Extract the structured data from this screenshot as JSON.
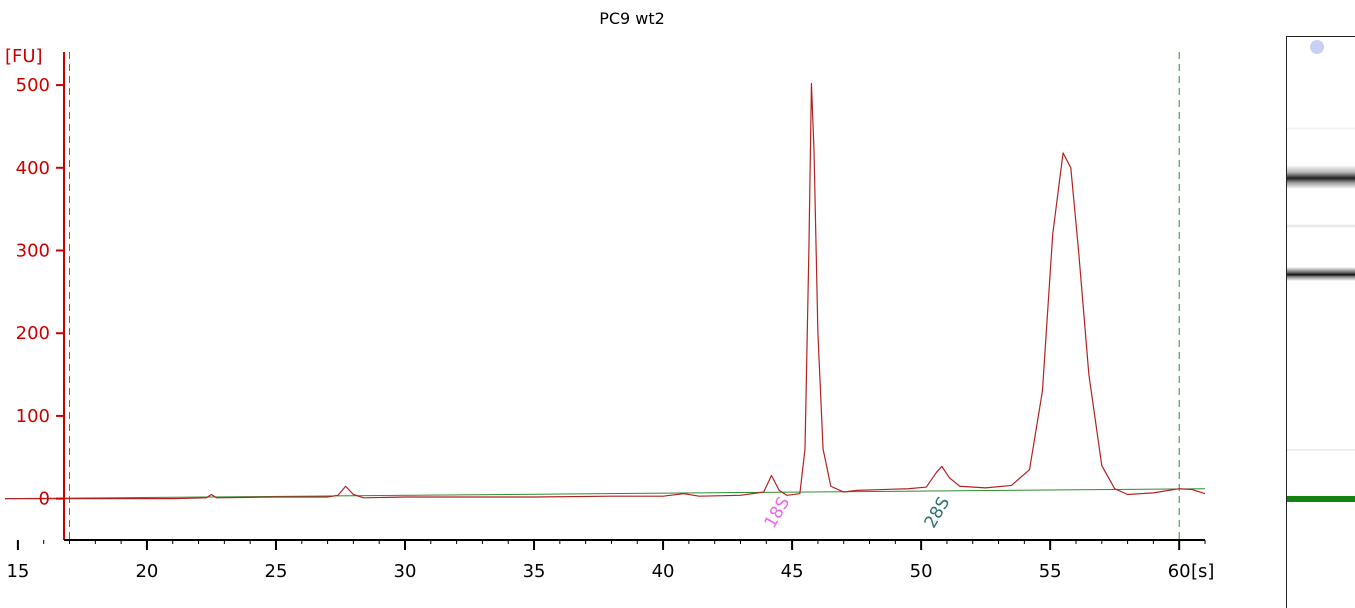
{
  "chart_data": {
    "type": "line",
    "title": "PC9 wt2",
    "yunit": "[FU]",
    "xunit": "[s]",
    "xlim": [
      14.5,
      61
    ],
    "ylim": [
      -50,
      540
    ],
    "xticks": [
      15,
      20,
      25,
      30,
      35,
      40,
      45,
      50,
      55,
      60
    ],
    "yticks": [
      0,
      100,
      200,
      300,
      400,
      500
    ],
    "markers": [
      17,
      60
    ],
    "colors": {
      "axis_y": "#cc0000",
      "trace": "#b22222",
      "baseline": "#2e8b2e",
      "marker": "#2e8b2e",
      "label_18S": "#ee66ee",
      "label_28S": "#2f6f6f"
    },
    "peak_labels": [
      {
        "text": "18S",
        "x": 44.6,
        "y": -20
      },
      {
        "text": "28S",
        "x": 50.8,
        "y": -20
      }
    ],
    "series": [
      {
        "values": [
          [
            14.5,
            0
          ],
          [
            18.5,
            0
          ],
          [
            21.0,
            0
          ],
          [
            22.3,
            1
          ],
          [
            22.5,
            5
          ],
          [
            22.7,
            1
          ],
          [
            25.0,
            2
          ],
          [
            27.0,
            2
          ],
          [
            27.4,
            4
          ],
          [
            27.7,
            15
          ],
          [
            28.0,
            5
          ],
          [
            28.4,
            1
          ],
          [
            30.0,
            2
          ],
          [
            35.0,
            2
          ],
          [
            38.0,
            3
          ],
          [
            40.0,
            3
          ],
          [
            40.8,
            6
          ],
          [
            41.4,
            3
          ],
          [
            43.0,
            4
          ],
          [
            43.9,
            8
          ],
          [
            44.2,
            28
          ],
          [
            44.5,
            10
          ],
          [
            44.8,
            4
          ],
          [
            45.3,
            6
          ],
          [
            45.5,
            60
          ],
          [
            45.65,
            300
          ],
          [
            45.75,
            502
          ],
          [
            45.85,
            420
          ],
          [
            46.0,
            200
          ],
          [
            46.2,
            60
          ],
          [
            46.5,
            15
          ],
          [
            47.0,
            8
          ],
          [
            47.5,
            10
          ],
          [
            48.5,
            11
          ],
          [
            49.5,
            12
          ],
          [
            50.2,
            14
          ],
          [
            50.6,
            32
          ],
          [
            50.8,
            39
          ],
          [
            51.1,
            25
          ],
          [
            51.5,
            15
          ],
          [
            52.5,
            13
          ],
          [
            53.5,
            16
          ],
          [
            54.2,
            35
          ],
          [
            54.7,
            130
          ],
          [
            55.1,
            320
          ],
          [
            55.5,
            418
          ],
          [
            55.8,
            400
          ],
          [
            56.1,
            300
          ],
          [
            56.5,
            150
          ],
          [
            57.0,
            40
          ],
          [
            57.5,
            12
          ],
          [
            58.0,
            5
          ],
          [
            59.0,
            7
          ],
          [
            60.0,
            12
          ],
          [
            60.5,
            11
          ],
          [
            61.0,
            6
          ]
        ]
      },
      {
        "values": [
          [
            14.5,
            0
          ],
          [
            61.0,
            12
          ]
        ]
      }
    ]
  }
}
